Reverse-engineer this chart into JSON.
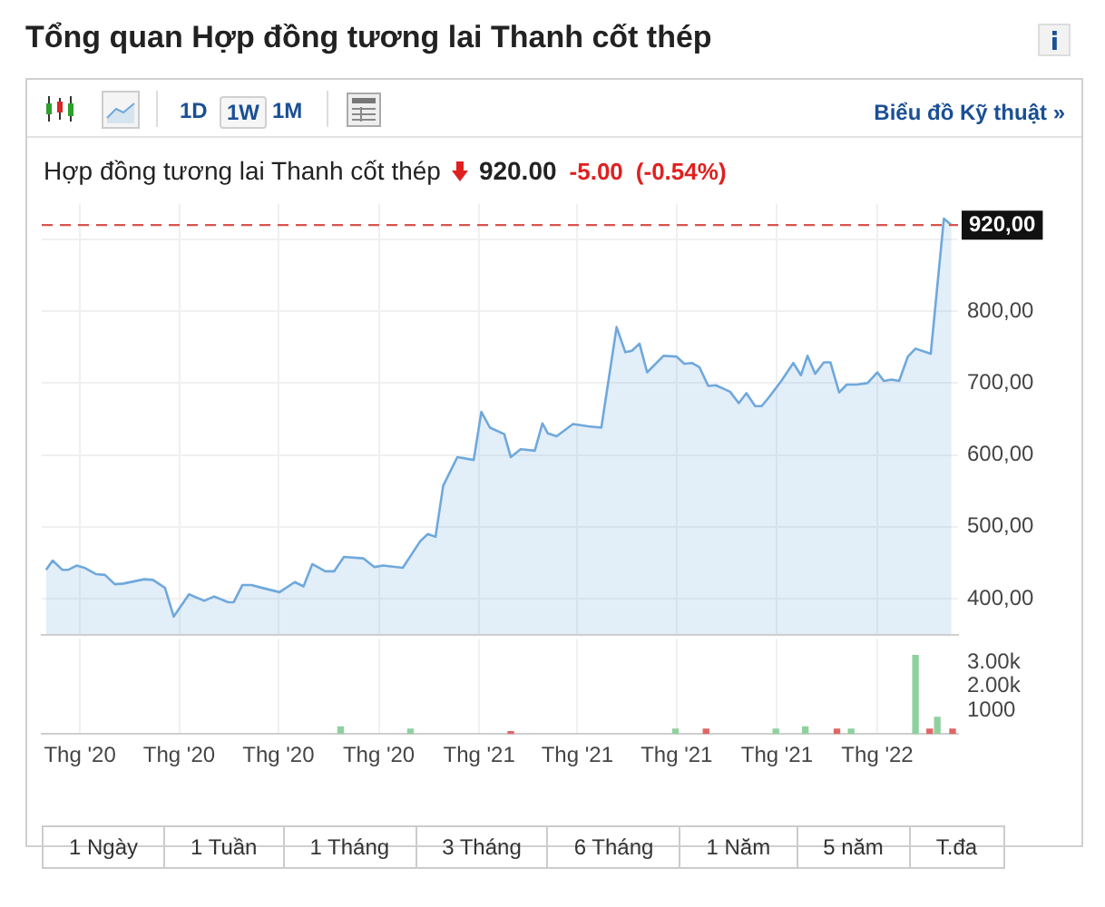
{
  "chart_data": [
    {
      "type": "area",
      "title": "Tổng quan Hợp đồng tương lai Thanh cốt thép",
      "subtitle": "Hợp đồng tương lai Thanh cốt thép",
      "annotations": [
        "920.00",
        "-5.00",
        "(-0.54%)",
        "1D",
        "1W",
        "1M",
        "Biểu đồ Kỹ thuật »",
        "1 Ngày",
        "1 Tuần",
        "1 Tháng",
        "3 Tháng",
        "6 Tháng",
        "1 Năm",
        "5 năm",
        "T.đa"
      ],
      "x": [
        "2019-12-01",
        "2019-12-07",
        "2019-12-16",
        "2019-12-21",
        "2019-12-29",
        "2020-01-05",
        "2020-01-16",
        "2020-01-24",
        "2020-02-02",
        "2020-02-10",
        "2020-02-29",
        "2020-03-08",
        "2020-03-19",
        "2020-03-27",
        "2020-04-10",
        "2020-04-24",
        "2020-05-03",
        "2020-05-16",
        "2020-05-21",
        "2020-05-29",
        "2020-06-06",
        "2020-06-16",
        "2020-07-02",
        "2020-07-16",
        "2020-07-24",
        "2020-08-01",
        "2020-08-13",
        "2020-08-21",
        "2020-08-30",
        "2020-09-17",
        "2020-09-27",
        "2020-10-05",
        "2020-10-23",
        "2020-11-08",
        "2020-11-15",
        "2020-11-22",
        "2020-11-29",
        "2020-12-12",
        "2020-12-27",
        "2021-01-03",
        "2021-01-11",
        "2021-01-24",
        "2021-01-30",
        "2021-02-08",
        "2021-02-21",
        "2021-02-28",
        "2021-03-05",
        "2021-03-13",
        "2021-03-28",
        "2021-04-11",
        "2021-04-23",
        "2021-05-07",
        "2021-05-15",
        "2021-05-21",
        "2021-05-28",
        "2021-06-04",
        "2021-06-19",
        "2021-07-01",
        "2021-07-08",
        "2021-07-15",
        "2021-07-22",
        "2021-07-30",
        "2021-08-06",
        "2021-08-19",
        "2021-08-27",
        "2021-09-03",
        "2021-09-11",
        "2021-09-17",
        "2021-09-24",
        "2021-10-05",
        "2021-10-16",
        "2021-10-23",
        "2021-10-29",
        "2021-11-05",
        "2021-11-13",
        "2021-11-19",
        "2021-11-27",
        "2021-12-04",
        "2021-12-13",
        "2021-12-23",
        "2022-01-01",
        "2022-01-07",
        "2022-01-14",
        "2022-01-21",
        "2022-01-29",
        "2022-02-05",
        "2022-02-19",
        "2022-03-03",
        "2022-03-10"
      ],
      "series": [
        {
          "color": "#6fa8dc",
          "values": [
            440,
            453,
            440,
            440,
            446,
            443,
            434,
            433,
            420,
            421,
            427,
            426,
            415,
            375,
            406,
            397,
            403,
            395,
            395,
            419,
            419,
            415,
            409,
            423,
            417,
            448,
            438,
            438,
            458,
            456,
            444,
            446,
            443,
            480,
            490,
            486,
            557,
            597,
            593,
            660,
            638,
            629,
            597,
            608,
            606,
            644,
            630,
            626,
            643,
            640,
            638,
            778,
            743,
            745,
            755,
            715,
            738,
            737,
            727,
            728,
            722,
            696,
            697,
            688,
            672,
            686,
            668,
            668,
            681,
            703,
            728,
            711,
            738,
            713,
            729,
            729,
            687,
            698,
            698,
            700,
            715,
            703,
            705,
            703,
            737,
            748,
            741,
            929,
            920
          ]
        }
      ],
      "xlim": [
        "2019-11-27",
        "2022-03-16"
      ],
      "xticks": [
        {
          "value": "2020-01-01",
          "label": null
        },
        {
          "value": "2020-04-01",
          "label": null
        },
        {
          "value": "2020-07-01",
          "label": null
        },
        {
          "value": "2020-10-01",
          "label": null
        },
        {
          "value": "2021-01-01",
          "label": null
        },
        {
          "value": "2021-04-01",
          "label": null
        },
        {
          "value": "2021-07-01",
          "label": null
        },
        {
          "value": "2021-10-01",
          "label": null
        },
        {
          "value": "2022-01-01",
          "label": null
        }
      ],
      "ylim": [
        350,
        950
      ],
      "yticks": [
        {
          "value": 400,
          "label": "400,00"
        },
        {
          "value": 500,
          "label": "500,00"
        },
        {
          "value": 600,
          "label": "600,00"
        },
        {
          "value": 700,
          "label": "700,00"
        },
        {
          "value": 800,
          "label": "800,00"
        },
        {
          "value": 900,
          "label": null
        }
      ],
      "ref_lines": [
        {
          "axis": "y",
          "value": 920,
          "label": "920,00",
          "color": "#d9534f",
          "line_style": "dashed"
        }
      ],
      "grid": true,
      "legend": false,
      "marker": "none",
      "tick_labels": "y"
    },
    {
      "type": "bar",
      "x": [
        "2020-08-27",
        "2020-10-30",
        "2021-01-30",
        "2021-06-30",
        "2021-07-28",
        "2021-09-30",
        "2021-10-27",
        "2021-11-25",
        "2021-12-08",
        "2022-02-05",
        "2022-02-18",
        "2022-02-25",
        "2022-03-11"
      ],
      "values": [
        300,
        200,
        100,
        200,
        200,
        200,
        300,
        200,
        200,
        3300,
        200,
        700,
        200
      ],
      "colors": [
        "#8fd19e",
        "#8fd19e",
        "#e06666",
        "#8fd19e",
        "#e06666",
        "#8fd19e",
        "#8fd19e",
        "#e06666",
        "#8fd19e",
        "#8fd19e",
        "#e06666",
        "#8fd19e",
        "#e06666"
      ],
      "xlim": [
        "2019-11-27",
        "2022-03-16"
      ],
      "xticks": [
        {
          "value": "2020-01-01",
          "label": "Thg '20"
        },
        {
          "value": "2020-04-01",
          "label": "Thg '20"
        },
        {
          "value": "2020-07-01",
          "label": "Thg '20"
        },
        {
          "value": "2020-10-01",
          "label": "Thg '20"
        },
        {
          "value": "2021-01-01",
          "label": "Thg '21"
        },
        {
          "value": "2021-04-01",
          "label": "Thg '21"
        },
        {
          "value": "2021-07-01",
          "label": "Thg '21"
        },
        {
          "value": "2021-10-01",
          "label": "Thg '21"
        },
        {
          "value": "2022-01-01",
          "label": "Thg '22"
        }
      ],
      "ylim": [
        0,
        4000
      ],
      "yticks": [
        {
          "value": 1000,
          "label": "1000"
        },
        {
          "value": 2000,
          "label": "2.00k"
        },
        {
          "value": 3000,
          "label": "3.00k"
        }
      ],
      "grid": "x",
      "legend": false
    }
  ]
}
